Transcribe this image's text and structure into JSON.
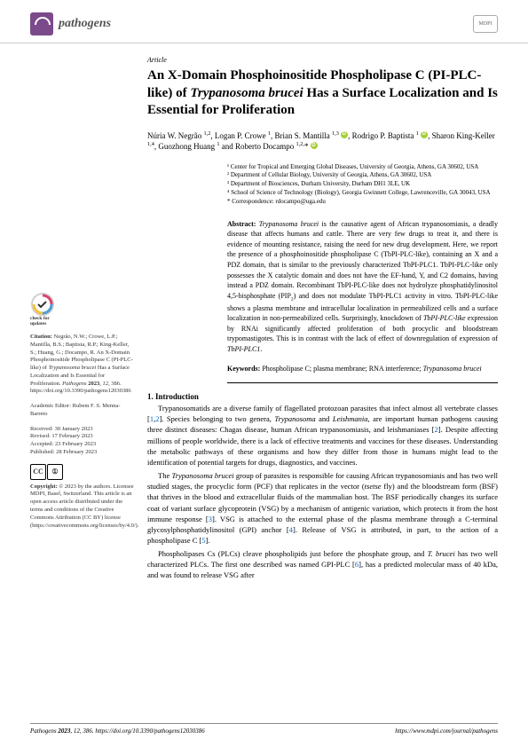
{
  "header": {
    "journal_name": "pathogens",
    "publisher_badge": "MDPI"
  },
  "article": {
    "type": "Article",
    "title_html": "An X-Domain Phosphoinositide Phospholipase C (PI-PLC-like) of <span class='ital'>Trypanosoma brucei</span> Has a Surface Localization and Is Essential for Proliferation",
    "authors_html": "Núria W. Negrão <sup>1,2</sup>, Logan P. Crowe <sup>1</sup>, Brian S. Mantilla <sup>1,3</sup> <span class='orcid'></span>, Rodrigo P. Baptista <sup>1</sup> <span class='orcid'></span>, Sharon King-Keller <sup>1,4</sup>, Guozhong Huang <sup>1</sup> and Roberto Docampo <sup>1,2,</sup>* <span class='orcid'></span>",
    "affiliations": [
      "¹  Center for Tropical and Emerging Global Diseases, University of Georgia, Athens, GA 30602, USA",
      "²  Department of Cellular Biology, University of Georgia, Athens, GA 30602, USA",
      "³  Department of Biosciences, Durham University, Durham DH1 3LE, UK",
      "⁴  School of Science of Technology (Biology), Georgia Gwinnett College, Lawrenceville, GA 30043, USA",
      "*  Correspondence: rdocampo@uga.edu"
    ],
    "abstract_label": "Abstract:",
    "abstract_body_html": " <span class='ital'>Trypanosoma brucei</span> is the causative agent of African trypanosomiasis, a deadly disease that affects humans and cattle. There are very few drugs to treat it, and there is evidence of mounting resistance, raising the need for new drug development. Here, we report the presence of a phosphoinositide phospholipase C (TbPI-PLC-like), containing an X and a PDZ domain, that is similar to the previously characterized TbPI-PLC1. TbPI-PLC-like only possesses the X catalytic domain and does not have the EF-hand, Y, and C2 domains, having instead a PDZ domain. Recombinant TbPI-PLC-like does not hydrolyze phosphatidylinositol 4,5-bisphosphate (PIP<sub>2</sub>) and does not modulate TbPI-PLC1 activity in vitro. TbPI-PLC-like shows a plasma membrane and intracellular localization in permeabilized cells and a surface localization in non-permeabilized cells. Surprisingly, knockdown of <span class='ital'>TbPI-PLC-like</span> expression by RNAi significantly affected proliferation of both procyclic and bloodstream trypomastigotes. This is in contrast with the lack of effect of downregulation of expression of <span class='ital'>TbPI-PLC1</span>.",
    "keywords_label": "Keywords:",
    "keywords_body_html": " Phospholipase C; plasma membrane; RNA interference; <span class='ital'>Trypanosoma brucei</span>"
  },
  "sidebar": {
    "check_updates_label": "check for updates",
    "citation_label": "Citation:",
    "citation_body_html": " Negrão, N.W.; Crowe, L.P.; Mantilla, B.S.; Baptista, R.P.; King-Keller, S.; Huang, G.; Docampo, R. An X-Domain Phosphoinositide Phospholipase C (PI-PLC-like) of <span class='ital'>Trypanosoma brucei</span> Has a Surface Localization and Is Essential for Proliferation. <span class='ital'>Pathogens</span> <b>2023</b>, <span class='ital'>12</span>, 386. https://doi.org/10.3390/pathogens12030386",
    "editor_label": "Academic Editor:",
    "editor_name": " Rubem F. S. Menna-Barreto",
    "received": "Received: 30 January 2023",
    "revised": "Revised: 17 February 2023",
    "accepted": "Accepted: 23 February 2023",
    "published": "Published: 28 February 2023",
    "copyright_label": "Copyright:",
    "copyright_body": " © 2023 by the authors. Licensee MDPI, Basel, Switzerland. This article is an open access article distributed under the terms and conditions of the Creative Commons Attribution (CC BY) license (https://creativecommons.org/licenses/by/4.0/)."
  },
  "introduction": {
    "heading": "1. Introduction",
    "para1_html": "Trypanosomatids are a diverse family of flagellated protozoan parasites that infect almost all vertebrate classes [<span class='ref'>1</span>,<span class='ref'>2</span>]. Species belonging to two genera, <span class='ital'>Trypanosoma</span> and <span class='ital'>Leishmania</span>, are important human pathogens causing three distinct diseases: Chagas disease, human African trypanosomiasis, and leishmaniases [<span class='ref'>2</span>]. Despite affecting millions of people worldwide, there is a lack of effective treatments and vaccines for these diseases. Understanding the metabolic pathways of these organisms and how they differ from those in humans might lead to the identification of potential targets for drugs, diagnostics, and vaccines.",
    "para2_html": "The <span class='ital'>Trypanosoma brucei</span> group of parasites is responsible for causing African trypanosomiasis and has two well studied stages, the procyclic form (PCF) that replicates in the vector (<span class='ital'>tsetse</span> fly) and the bloodstream form (BSF) that thrives in the blood and extracellular fluids of the mammalian host. The BSF periodically changes its surface coat of variant surface glycoprotein (VSG) by a mechanism of antigenic variation, which protects it from the host immune response [<span class='ref'>3</span>]. VSG is attached to the external phase of the plasma membrane through a C-terminal glycosylphosphatidylinositol (GPI) anchor [<span class='ref'>4</span>]. Release of VSG is attributed, in part, to the action of a phospholipase C [<span class='ref'>5</span>].",
    "para3_html": "Phospholipases Cs (PLCs) cleave phospholipids just before the phosphate group, and <span class='ital'>T. brucei</span> has two well characterized PLCs. The first one described was named GPI-PLC [<span class='ref'>6</span>], has a predicted molecular mass of 40 kDa, and was found to release VSG after"
  },
  "footer": {
    "left_html": "<span class='ital'>Pathogens</span> <b>2023</b>, <span class='ital'>12</span>, 386. https://doi.org/10.3390/pathogens12030386",
    "right": "https://www.mdpi.com/journal/pathogens"
  },
  "colors": {
    "journal_purple": "#7a4a8a",
    "orcid_green": "#a6ce39",
    "link_blue": "#0066cc"
  }
}
